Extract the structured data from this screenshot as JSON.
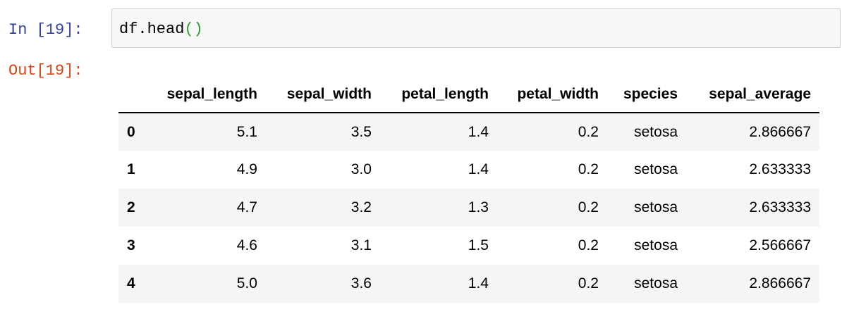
{
  "input": {
    "prompt": "In [19]:",
    "code": [
      "df.head",
      "()"
    ]
  },
  "output": {
    "prompt": "Out[19]:",
    "table": {
      "columns": [
        "sepal_length",
        "sepal_width",
        "petal_length",
        "petal_width",
        "species",
        "sepal_average"
      ],
      "index": [
        "0",
        "1",
        "2",
        "3",
        "4"
      ],
      "rows": [
        [
          "5.1",
          "3.5",
          "1.4",
          "0.2",
          "setosa",
          "2.866667"
        ],
        [
          "4.9",
          "3.0",
          "1.4",
          "0.2",
          "setosa",
          "2.633333"
        ],
        [
          "4.7",
          "3.2",
          "1.3",
          "0.2",
          "setosa",
          "2.633333"
        ],
        [
          "4.6",
          "3.1",
          "1.5",
          "0.2",
          "setosa",
          "2.566667"
        ],
        [
          "5.0",
          "3.6",
          "1.4",
          "0.2",
          "setosa",
          "2.866667"
        ]
      ]
    }
  }
}
